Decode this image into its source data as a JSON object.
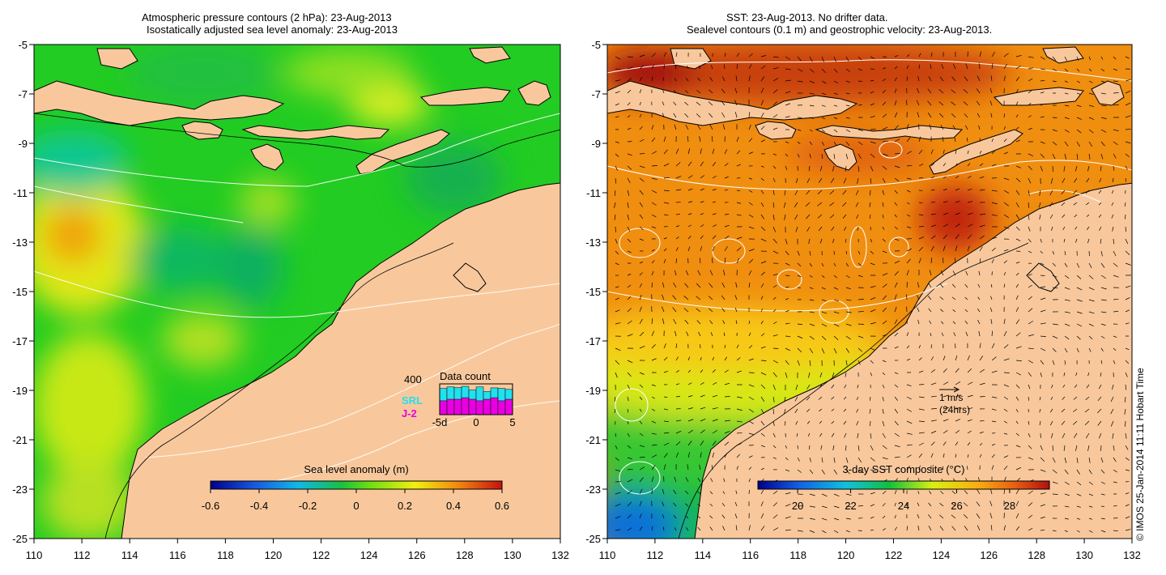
{
  "left_panel": {
    "title_line1": "Atmospheric pressure contours (2 hPa): 23-Aug-2013",
    "title_line2": "Isostatically adjusted sea level anomaly: 23-Aug-2013",
    "colorbar": {
      "label": "Sea level anomaly (m)",
      "ticks": [
        "-0.6",
        "-0.4",
        "-0.2",
        "0",
        "0.2",
        "0.4",
        "0.6"
      ],
      "range": [
        -0.6,
        0.6
      ]
    },
    "data_count": {
      "title": "Data count",
      "y_label": "400",
      "x_ticks": [
        "-5d",
        "0",
        "5"
      ],
      "legend": [
        {
          "name": "SRL",
          "color": "#22e0ee"
        },
        {
          "name": "J-2",
          "color": "#e800e0"
        }
      ],
      "srl_values": [
        0.85,
        0.9,
        0.88,
        0.92,
        0.8,
        0.9,
        0.75,
        0.87,
        0.85,
        0.82
      ],
      "j2_values": [
        0.45,
        0.5,
        0.5,
        0.55,
        0.5,
        0.45,
        0.5,
        0.55,
        0.45,
        0.5
      ]
    }
  },
  "right_panel": {
    "title_line1": "SST: 23-Aug-2013. No drifter data.",
    "title_line2": "Sealevel contours (0.1 m) and geostrophic velocity: 23-Aug-2013.",
    "colorbar": {
      "label": "3-day SST composite (°C)",
      "ticks": [
        "20",
        "22",
        "24",
        "26",
        "28"
      ],
      "range": [
        18.5,
        29.5
      ]
    },
    "velocity_scale": {
      "line1": "1 m/s",
      "line2": "(24hrs)"
    }
  },
  "axes": {
    "lon_ticks": [
      "110",
      "112",
      "114",
      "116",
      "118",
      "120",
      "122",
      "124",
      "126",
      "128",
      "130",
      "132"
    ],
    "lat_ticks": [
      "-5",
      "-7",
      "-9",
      "-11",
      "-13",
      "-15",
      "-17",
      "-19",
      "-21",
      "-23",
      "-25"
    ],
    "lon_range": [
      110,
      132
    ],
    "lat_range": [
      -25,
      -5
    ]
  },
  "credit": "© IMOS 25-Jan-2014 11:11 Hobart Time",
  "colors": {
    "land": "#f8c89c",
    "ocean_sla_base": "#22cc22",
    "ocean_sst_base": "#f08e10"
  }
}
